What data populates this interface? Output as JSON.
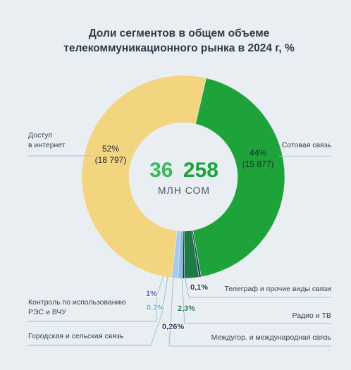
{
  "chart_data": {
    "type": "pie",
    "title": "Доли сегментов в общем объеме телекоммуникационного рынка в 2024 г, %",
    "title_lines": [
      "Доли сегментов в общем объеме",
      "телекоммуникационного рынка в 2024 г, %"
    ],
    "center": {
      "value_part1": "36",
      "value_part2": "258",
      "unit": "МЛН СОМ",
      "total": 36258
    },
    "slices": [
      {
        "category": "Сотовая связь",
        "percent": 44,
        "percent_label": "44%",
        "value_label": "(15 877)",
        "value": 15877,
        "color": "#1ea33a"
      },
      {
        "category": "Телеграф и прочие виды связи",
        "percent": 0.1,
        "percent_label": "0,1%",
        "color": "#1e3556"
      },
      {
        "category": "Радио и ТВ",
        "percent": 2.3,
        "percent_label": "2,3%",
        "color": "#1e7a45"
      },
      {
        "category": "Междугор. и международная связь",
        "percent": 0.26,
        "percent_label": "0,26%",
        "color": "#1e3556"
      },
      {
        "category": "Городская и сельская связь",
        "percent": 0.7,
        "percent_label": "0,7%",
        "color": "#7fc6e6"
      },
      {
        "category": "Контроль по использованию РЭС и ВЧУ",
        "percent": 1,
        "percent_label": "1%",
        "color": "#a9c8ec"
      },
      {
        "category": "Доступ в интернет",
        "percent": 52,
        "percent_label": "52%",
        "value_label": "(18 797)",
        "value": 18797,
        "color": "#f3d57f"
      }
    ],
    "label_texts": {
      "internet": [
        "Доступ",
        "в интернет"
      ],
      "kontrol": [
        "Контроль по использованию",
        "РЭС и ВЧУ"
      ]
    },
    "colors": {
      "background": "#e9eef3",
      "center_part1": "#3cb95b",
      "center_part2": "#1ea33a",
      "leader": "#a8bbcf"
    }
  }
}
